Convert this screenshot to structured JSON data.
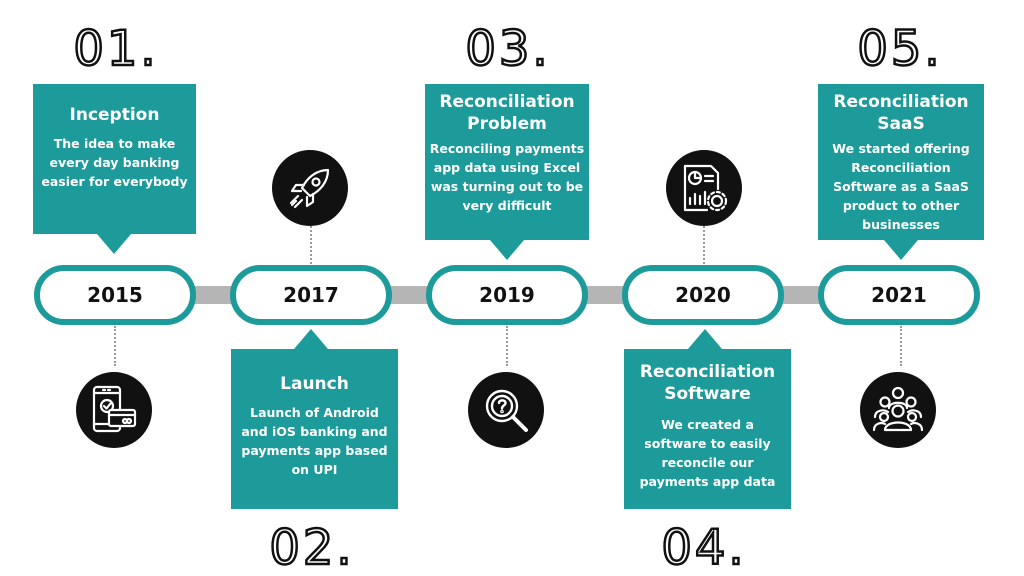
{
  "milestones": [
    {
      "number": "01.",
      "year": "2015",
      "title": "Inception",
      "body": "The  idea to make every day banking easier for everybody",
      "icon": "mobile-payment-icon"
    },
    {
      "number": "02.",
      "year": "2017",
      "title": "Launch",
      "body": "Launch of Android and  iOS banking and payments app based on UPI",
      "icon": "rocket-icon"
    },
    {
      "number": "03.",
      "year": "2019",
      "title": "Reconciliation Problem",
      "body": "Reconciling payments app data using Excel was turning out to be very difficult",
      "icon": "magnifier-question-icon"
    },
    {
      "number": "04.",
      "year": "2020",
      "title": "Reconciliation Software",
      "body": "We created a software to easily reconcile our payments app data",
      "icon": "report-gear-icon"
    },
    {
      "number": "05.",
      "year": "2021",
      "title": "Reconciliation SaaS",
      "body": "We started offering Reconciliation Software as a SaaS product to other businesses",
      "icon": "people-group-icon"
    }
  ],
  "colors": {
    "teal": "#1d9a9a",
    "dark": "#111111",
    "connector": "#b5b5b5"
  }
}
